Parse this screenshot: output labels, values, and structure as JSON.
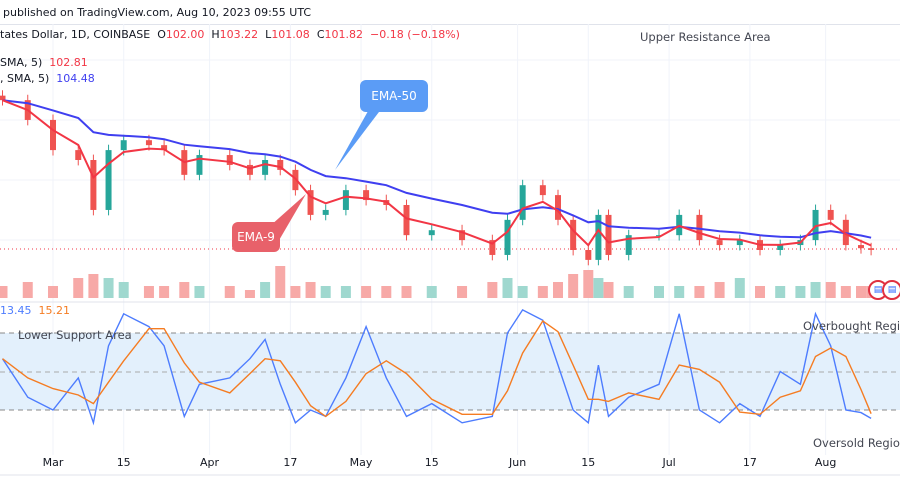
{
  "header": {
    "published": "published on TradingView.com, Aug 10, 2023 09:55 UTC"
  },
  "symbol": {
    "name": "tates Dollar, 1D, COINBASE",
    "open_label": "O",
    "open": "102.00",
    "high_label": "H",
    "high": "103.22",
    "low_label": "L",
    "low": "101.08",
    "close_label": "C",
    "close": "101.82",
    "change": "−0.18 (−0.18%)"
  },
  "indicators": [
    {
      "label": "SMA, 5)",
      "value": "102.81",
      "color": "#f23645"
    },
    {
      "label": ", SMA, 5)",
      "value": "104.48",
      "color": "#3f3ff0"
    }
  ],
  "annotations": {
    "upper_resistance": "Upper Resistance Area",
    "ema50": "EMA-50",
    "ema9": "EMA-9",
    "lower_support": "Lower Support Area",
    "overbought": "Overbought Region",
    "oversold": "Oversold Region"
  },
  "oscillator_legend": {
    "k": "13.45",
    "d": "15.21"
  },
  "colors": {
    "up": "#26a69a",
    "down": "#ef5350",
    "ema_fast": "#f23645",
    "ema_slow": "#3f3ff0",
    "stoch_k": "#4d7cfe",
    "stoch_d": "#f57c22",
    "band": "#e3f0fc"
  },
  "chart_data": {
    "type": "candlestick",
    "x_tick_labels": [
      {
        "date": "2023-03-01",
        "label": "Mar"
      },
      {
        "date": "2023-03-15",
        "label": "15"
      },
      {
        "date": "2023-04-01",
        "label": "Apr"
      },
      {
        "date": "2023-04-17",
        "label": "17"
      },
      {
        "date": "2023-05-01",
        "label": "May"
      },
      {
        "date": "2023-05-15",
        "label": "15"
      },
      {
        "date": "2023-06-01",
        "label": "Jun"
      },
      {
        "date": "2023-06-15",
        "label": "15"
      },
      {
        "date": "2023-07-01",
        "label": "Jul"
      },
      {
        "date": "2023-07-17",
        "label": "17"
      },
      {
        "date": "2023-08-01",
        "label": "Aug"
      }
    ],
    "dates": [
      "2023-02-19",
      "2023-02-24",
      "2023-03-01",
      "2023-03-06",
      "2023-03-09",
      "2023-03-12",
      "2023-03-15",
      "2023-03-20",
      "2023-03-23",
      "2023-03-27",
      "2023-03-30",
      "2023-04-05",
      "2023-04-09",
      "2023-04-12",
      "2023-04-15",
      "2023-04-18",
      "2023-04-21",
      "2023-04-24",
      "2023-04-28",
      "2023-05-02",
      "2023-05-06",
      "2023-05-10",
      "2023-05-15",
      "2023-05-21",
      "2023-05-27",
      "2023-05-30",
      "2023-06-02",
      "2023-06-06",
      "2023-06-09",
      "2023-06-12",
      "2023-06-15",
      "2023-06-17",
      "2023-06-19",
      "2023-06-23",
      "2023-06-29",
      "2023-07-03",
      "2023-07-07",
      "2023-07-11",
      "2023-07-15",
      "2023-07-19",
      "2023-07-23",
      "2023-07-27",
      "2023-07-30",
      "2023-08-02",
      "2023-08-05",
      "2023-08-08",
      "2023-08-10"
    ],
    "close": [
      135.1,
      130.7,
      124.0,
      121.8,
      110.7,
      124.0,
      126.2,
      125.1,
      124.0,
      118.5,
      122.9,
      120.7,
      118.5,
      121.8,
      119.6,
      115.1,
      109.6,
      110.7,
      115.1,
      112.9,
      111.8,
      105.1,
      106.2,
      104.0,
      100.7,
      108.5,
      116.2,
      114.0,
      108.5,
      101.8,
      99.6,
      109.6,
      100.7,
      105.1,
      105.1,
      109.6,
      104.0,
      102.9,
      104.0,
      101.8,
      102.9,
      104.0,
      110.7,
      108.5,
      102.9,
      102.2,
      101.82
    ],
    "volume": [
      3,
      4,
      3,
      5,
      6,
      5,
      4,
      3,
      3,
      4,
      3,
      3,
      2,
      4,
      8,
      3,
      4,
      3,
      3,
      3,
      3,
      3,
      3,
      3,
      4,
      5,
      3,
      3,
      4,
      6,
      7,
      5,
      4,
      3,
      3,
      3,
      3,
      4,
      5,
      3,
      3,
      3,
      4,
      4,
      3,
      3,
      3
    ],
    "last_price": 101.82,
    "stochastic": {
      "k": [
        60,
        30,
        20,
        45,
        10,
        70,
        95,
        85,
        70,
        15,
        40,
        45,
        60,
        75,
        40,
        10,
        20,
        15,
        45,
        85,
        45,
        15,
        25,
        10,
        15,
        80,
        98,
        90,
        55,
        20,
        10,
        55,
        15,
        30,
        40,
        95,
        20,
        10,
        25,
        15,
        50,
        40,
        95,
        70,
        20,
        18,
        13.45
      ],
      "levels": [
        20,
        50,
        80
      ],
      "ylim": [
        0,
        100
      ]
    }
  }
}
